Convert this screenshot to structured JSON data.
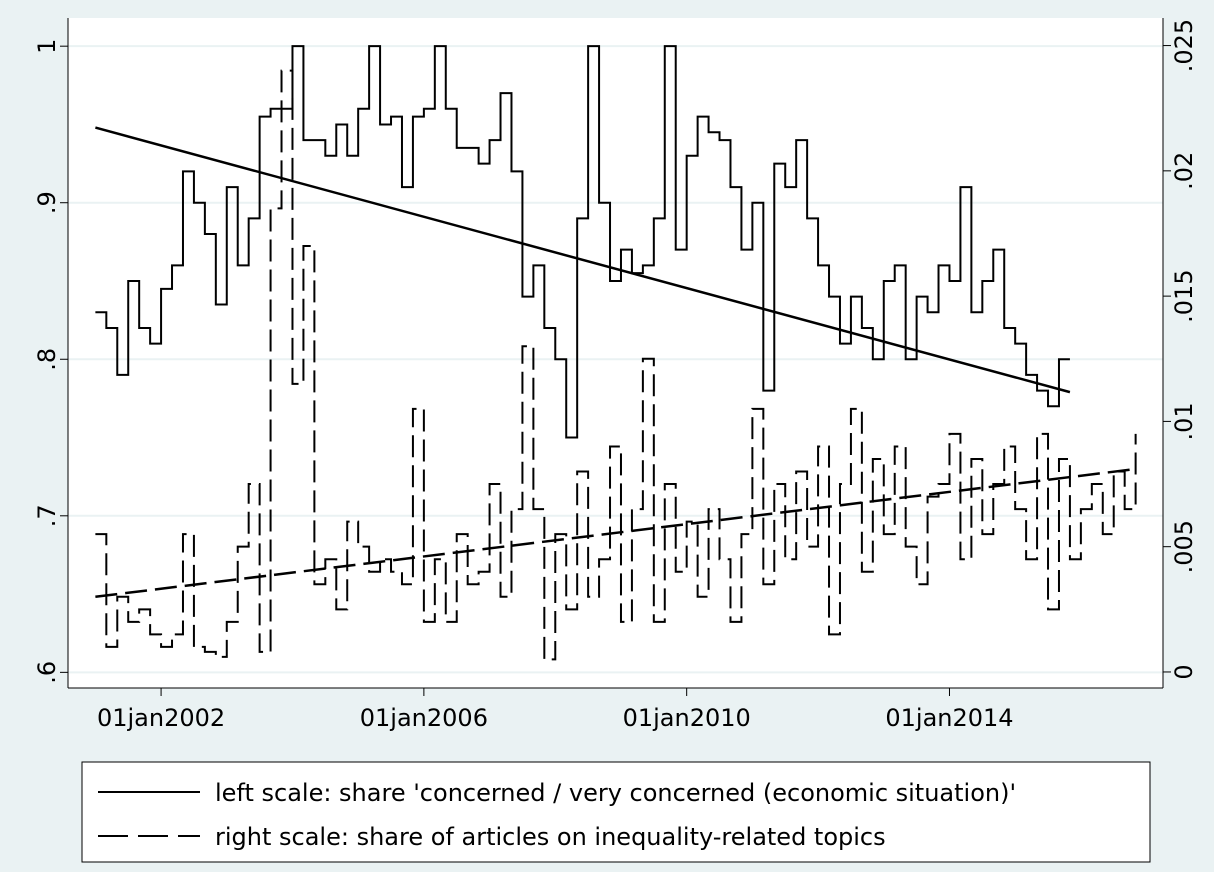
{
  "chart_data": {
    "type": "line",
    "xlim": [
      "2000-08",
      "2017-04"
    ],
    "xticks": [
      {
        "value": "2002-01",
        "label": "01jan2002"
      },
      {
        "value": "2006-01",
        "label": "01jan2006"
      },
      {
        "value": "2010-01",
        "label": "01jan2010"
      },
      {
        "value": "2014-01",
        "label": "01jan2014"
      }
    ],
    "ylim": [
      0.59,
      1.018
    ],
    "yticks": [
      {
        "value": 0.6,
        "label": ".6"
      },
      {
        "value": 0.7,
        "label": ".7"
      },
      {
        "value": 0.8,
        "label": ".8"
      },
      {
        "value": 0.9,
        "label": ".9"
      },
      1
    ],
    "y2lim": [
      -0.00064,
      0.0261
    ],
    "y2ticks": [
      0,
      {
        "value": 0.005,
        "label": ".005"
      },
      {
        "value": 0.01,
        "label": ".01"
      },
      {
        "value": 0.015,
        "label": ".015"
      },
      {
        "value": 0.02,
        "label": ".02"
      },
      {
        "value": 0.025,
        "label": ".025"
      }
    ],
    "grid": true,
    "series": [
      {
        "name": "left scale: share 'concerned / very concerned (economic situation)'",
        "color": "#000000",
        "dash": "solid",
        "axis": "y",
        "x": [
          "2001-01",
          "2001-03",
          "2001-05",
          "2001-07",
          "2001-09",
          "2001-11",
          "2002-01",
          "2002-03",
          "2002-05",
          "2002-07",
          "2002-09",
          "2002-11",
          "2003-01",
          "2003-03",
          "2003-05",
          "2003-07",
          "2003-09",
          "2003-11",
          "2004-01",
          "2004-03",
          "2004-05",
          "2004-07",
          "2004-09",
          "2004-11",
          "2005-01",
          "2005-03",
          "2005-05",
          "2005-07",
          "2005-09",
          "2005-11",
          "2006-01",
          "2006-03",
          "2006-05",
          "2006-07",
          "2006-09",
          "2006-11",
          "2007-01",
          "2007-03",
          "2007-05",
          "2007-07",
          "2007-09",
          "2007-11",
          "2008-01",
          "2008-03",
          "2008-05",
          "2008-07",
          "2008-09",
          "2008-11",
          "2009-01",
          "2009-03",
          "2009-05",
          "2009-07",
          "2009-09",
          "2009-11",
          "2010-01",
          "2010-03",
          "2010-05",
          "2010-07",
          "2010-09",
          "2010-11",
          "2011-01",
          "2011-03",
          "2011-05",
          "2011-07",
          "2011-09",
          "2011-11",
          "2012-01",
          "2012-03",
          "2012-05",
          "2012-07",
          "2012-09",
          "2012-11",
          "2013-01",
          "2013-03",
          "2013-05",
          "2013-07",
          "2013-09",
          "2013-11",
          "2014-01",
          "2014-03",
          "2014-05",
          "2014-07",
          "2014-09",
          "2014-11",
          "2015-01",
          "2015-03",
          "2015-05",
          "2015-07",
          "2015-09",
          "2015-11"
        ],
        "values": [
          0.83,
          0.82,
          0.79,
          0.85,
          0.82,
          0.81,
          0.845,
          0.86,
          0.92,
          0.9,
          0.88,
          0.835,
          0.91,
          0.86,
          0.89,
          0.955,
          0.96,
          0.96,
          1.0,
          0.94,
          0.94,
          0.93,
          0.95,
          0.93,
          0.96,
          1.0,
          0.95,
          0.955,
          0.91,
          0.955,
          0.96,
          1.0,
          0.96,
          0.935,
          0.935,
          0.925,
          0.94,
          0.97,
          0.92,
          0.84,
          0.86,
          0.82,
          0.8,
          0.75,
          0.89,
          1.0,
          0.9,
          0.85,
          0.87,
          0.855,
          0.86,
          0.89,
          1.0,
          0.87,
          0.93,
          0.955,
          0.945,
          0.94,
          0.91,
          0.87,
          0.9,
          0.78,
          0.925,
          0.91,
          0.94,
          0.89,
          0.86,
          0.84,
          0.81,
          0.84,
          0.82,
          0.8,
          0.85,
          0.86,
          0.8,
          0.84,
          0.83,
          0.86,
          0.85,
          0.91,
          0.83,
          0.85,
          0.87,
          0.82,
          0.81,
          0.79,
          0.78,
          0.77,
          0.8,
          0.8
        ],
        "trend": {
          "x": [
            "2001-01",
            "2015-11"
          ],
          "values": [
            0.948,
            0.779
          ]
        }
      },
      {
        "name": "right scale: share of articles on inequality-related topics",
        "color": "#000000",
        "dash": "dashed",
        "axis": "y2",
        "x": [
          "2001-01",
          "2001-03",
          "2001-05",
          "2001-07",
          "2001-09",
          "2001-11",
          "2002-01",
          "2002-03",
          "2002-05",
          "2002-07",
          "2002-09",
          "2002-11",
          "2003-01",
          "2003-03",
          "2003-05",
          "2003-07",
          "2003-09",
          "2003-11",
          "2004-01",
          "2004-03",
          "2004-05",
          "2004-07",
          "2004-09",
          "2004-11",
          "2005-01",
          "2005-03",
          "2005-05",
          "2005-07",
          "2005-09",
          "2005-11",
          "2006-01",
          "2006-03",
          "2006-05",
          "2006-07",
          "2006-09",
          "2006-11",
          "2007-01",
          "2007-03",
          "2007-05",
          "2007-07",
          "2007-09",
          "2007-11",
          "2008-01",
          "2008-03",
          "2008-05",
          "2008-07",
          "2008-09",
          "2008-11",
          "2009-01",
          "2009-03",
          "2009-05",
          "2009-07",
          "2009-09",
          "2009-11",
          "2010-01",
          "2010-03",
          "2010-05",
          "2010-07",
          "2010-09",
          "2010-11",
          "2011-01",
          "2011-03",
          "2011-05",
          "2011-07",
          "2011-09",
          "2011-11",
          "2012-01",
          "2012-03",
          "2012-05",
          "2012-07",
          "2012-09",
          "2012-11",
          "2013-01",
          "2013-03",
          "2013-05",
          "2013-07",
          "2013-09",
          "2013-11",
          "2014-01",
          "2014-03",
          "2014-05",
          "2014-07",
          "2014-09",
          "2014-11",
          "2015-01",
          "2015-03",
          "2015-05",
          "2015-07",
          "2015-09",
          "2015-11",
          "2016-01",
          "2016-03",
          "2016-05",
          "2016-07",
          "2016-09",
          "2016-11"
        ],
        "values": [
          0.0055,
          0.001,
          0.003,
          0.002,
          0.0025,
          0.0015,
          0.001,
          0.0015,
          0.0055,
          0.001,
          0.0008,
          0.0006,
          0.002,
          0.005,
          0.0075,
          0.0008,
          0.0185,
          0.024,
          0.0115,
          0.017,
          0.0035,
          0.0045,
          0.0025,
          0.006,
          0.005,
          0.004,
          0.0045,
          0.004,
          0.0035,
          0.0105,
          0.002,
          0.0045,
          0.002,
          0.0055,
          0.0035,
          0.004,
          0.0075,
          0.003,
          0.0065,
          0.013,
          0.0065,
          0.0005,
          0.0055,
          0.0025,
          0.008,
          0.003,
          0.0045,
          0.009,
          0.002,
          0.0065,
          0.0125,
          0.002,
          0.0075,
          0.004,
          0.006,
          0.003,
          0.0065,
          0.0045,
          0.002,
          0.0055,
          0.0105,
          0.0035,
          0.0075,
          0.0045,
          0.008,
          0.005,
          0.009,
          0.0015,
          0.0075,
          0.0105,
          0.004,
          0.0085,
          0.0055,
          0.009,
          0.005,
          0.0035,
          0.007,
          0.0075,
          0.0095,
          0.0045,
          0.0085,
          0.0055,
          0.0075,
          0.009,
          0.0065,
          0.0045,
          0.0095,
          0.0025,
          0.0085,
          0.0045,
          0.0065,
          0.0075,
          0.0055,
          0.008,
          0.0065,
          0.0095
        ],
        "trend": {
          "x": [
            "2001-01",
            "2016-11"
          ],
          "values": [
            0.003,
            0.0081
          ]
        }
      }
    ]
  }
}
